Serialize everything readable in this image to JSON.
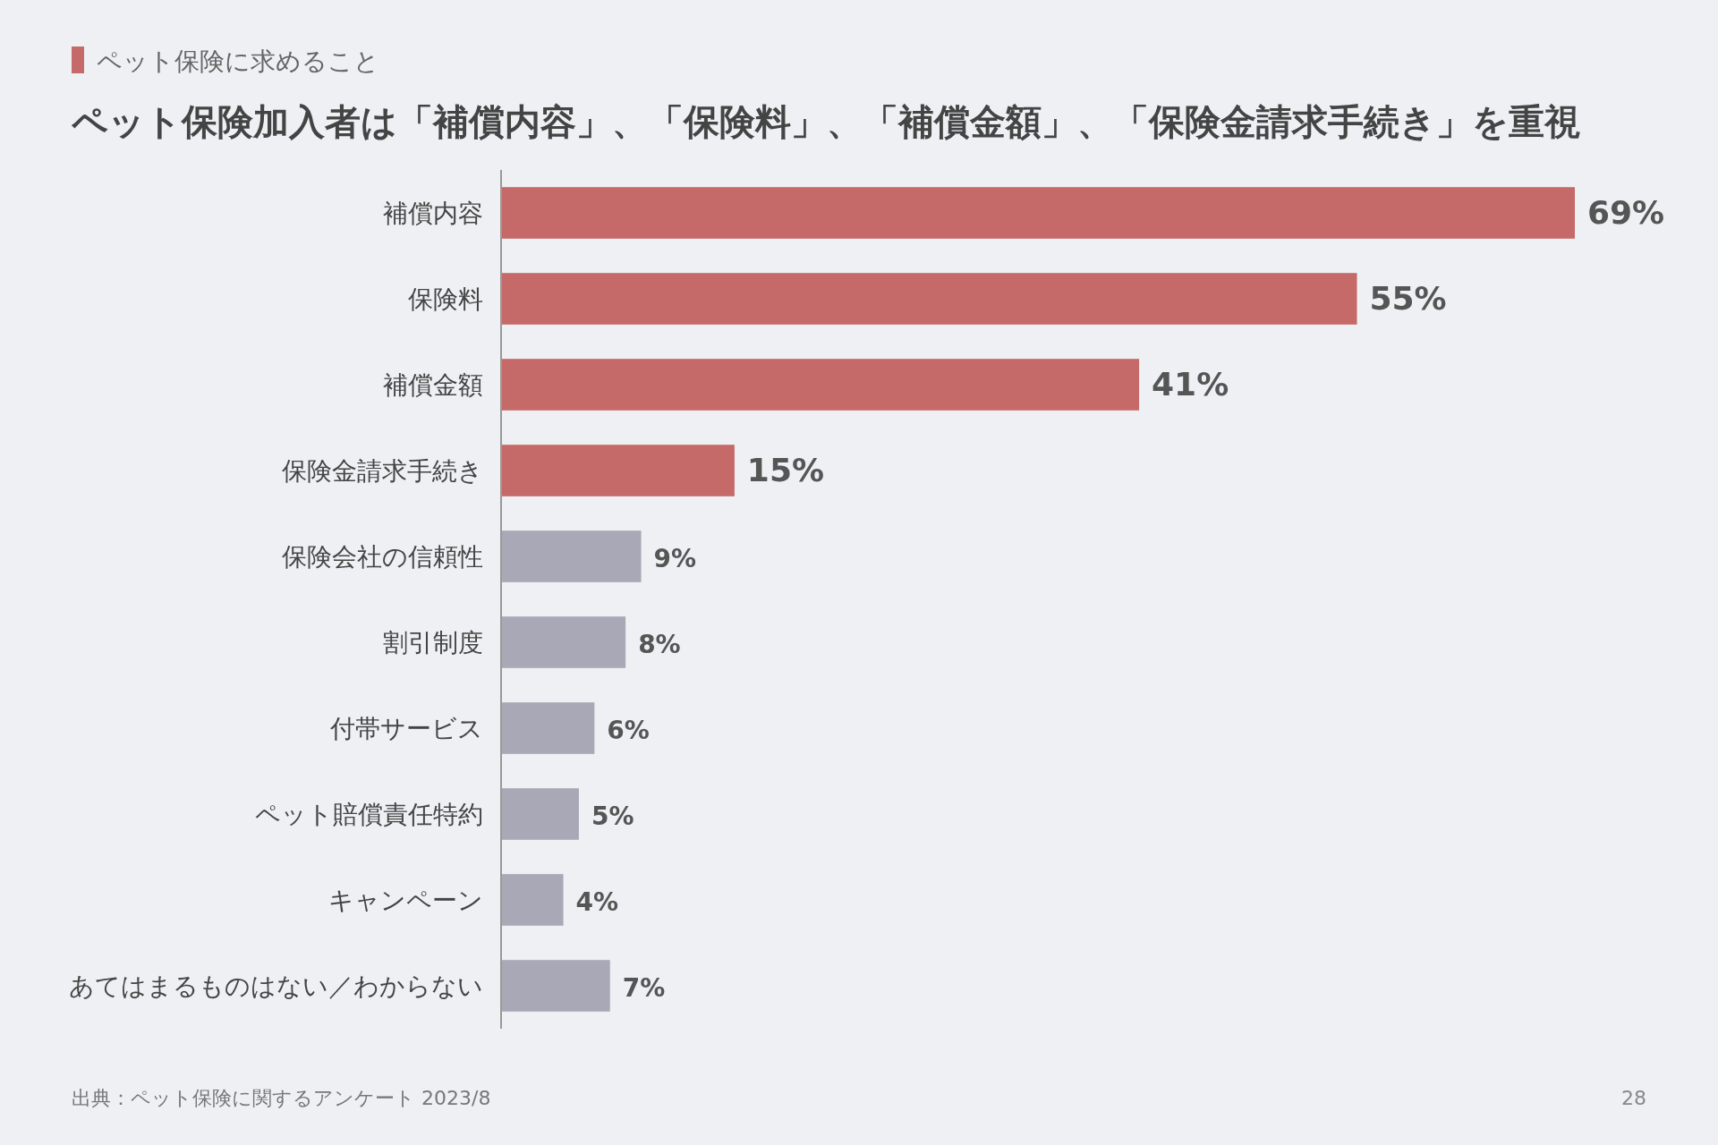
{
  "chart_data": {
    "type": "bar",
    "orientation": "horizontal",
    "subtitle": "ペット保険に求めること",
    "title": "ペット保険加入者は「補償内容」、「保険料」、「補償金額」、「保険金請求手続き」を重視",
    "categories": [
      "補償内容",
      "保険料",
      "補償金額",
      "保険金請求手続き",
      "保険会社の信頼性",
      "割引制度",
      "付帯サービス",
      "ペット賠償責任特約",
      "キャンペーン",
      "あてはまるものはない／わからない"
    ],
    "values": [
      69,
      55,
      41,
      15,
      9,
      8,
      6,
      5,
      4,
      7
    ],
    "colors": [
      "#c56a68",
      "#c56a68",
      "#c56a68",
      "#c56a68",
      "#a9a8b6",
      "#a9a8b6",
      "#a9a8b6",
      "#a9a8b6",
      "#a9a8b6",
      "#a9a8b6"
    ],
    "value_labels": [
      "69%",
      "55%",
      "41%",
      "15%",
      "9%",
      "8%",
      "6%",
      "5%",
      "4%",
      "7%"
    ],
    "annotations": [
      "出典：ペット保険に関するアンケート 2023/8",
      "28"
    ]
  }
}
